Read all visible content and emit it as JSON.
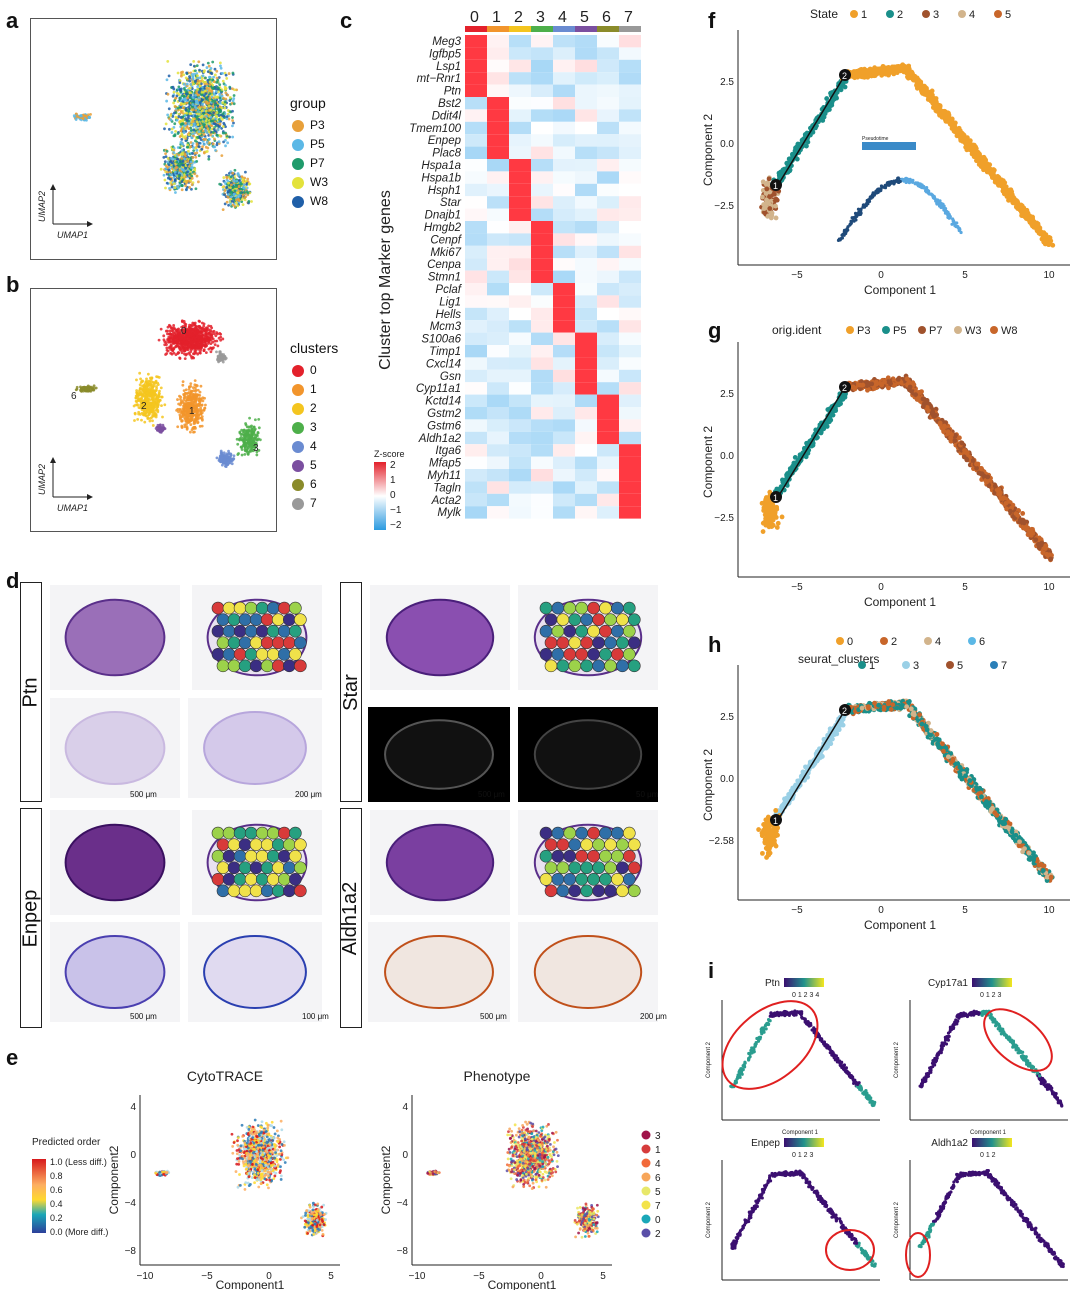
{
  "labels": {
    "a": "a",
    "b": "b",
    "c": "c",
    "d": "d",
    "e": "e",
    "f": "f",
    "g": "g",
    "h": "h",
    "i": "i"
  },
  "panel_a": {
    "legend_title": "group",
    "groups": [
      {
        "name": "P3",
        "color": "#e8a03a"
      },
      {
        "name": "P5",
        "color": "#5bb8e6"
      },
      {
        "name": "P7",
        "color": "#1f9b6b"
      },
      {
        "name": "W3",
        "color": "#e3e23b"
      },
      {
        "name": "W8",
        "color": "#1f5fa8"
      }
    ],
    "x_axis": "UMAP1",
    "y_axis": "UMAP2"
  },
  "panel_b": {
    "legend_title": "clusters",
    "clusters": [
      {
        "name": "0",
        "color": "#e3212b"
      },
      {
        "name": "1",
        "color": "#f2952c"
      },
      {
        "name": "2",
        "color": "#f4c51f"
      },
      {
        "name": "3",
        "color": "#4daf4a"
      },
      {
        "name": "4",
        "color": "#6a8bd1"
      },
      {
        "name": "5",
        "color": "#7b4fa0"
      },
      {
        "name": "6",
        "color": "#8a8b2a"
      },
      {
        "name": "7",
        "color": "#999999"
      }
    ],
    "x_axis": "UMAP1",
    "y_axis": "UMAP2"
  },
  "panel_c": {
    "ylabel": "Cluster top Marker genes",
    "columns": [
      "0",
      "1",
      "2",
      "3",
      "4",
      "5",
      "6",
      "7"
    ],
    "column_colors": [
      "#e3212b",
      "#f2952c",
      "#f4c51f",
      "#4daf4a",
      "#6a8bd1",
      "#7b4fa0",
      "#8a8b2a",
      "#999999"
    ],
    "genes": [
      "Meg3",
      "Igfbp5",
      "Lsp1",
      "mt−Rnr1",
      "Ptn",
      "Bst2",
      "Ddit4l",
      "Tmem100",
      "Enpep",
      "Plac8",
      "Hspa1a",
      "Hspa1b",
      "Hsph1",
      "Star",
      "Dnajb1",
      "Hmgb2",
      "Cenpf",
      "Mki67",
      "Cenpa",
      "Stmn1",
      "Pclaf",
      "Lig1",
      "Hells",
      "Mcm3",
      "S100a6",
      "Timp1",
      "Cxcl14",
      "Gsn",
      "Cyp11a1",
      "Kctd14",
      "Gstm2",
      "Gstm6",
      "Aldh1a2",
      "Itga6",
      "Mfap5",
      "Myh11",
      "Tagln",
      "Acta2",
      "Mylk"
    ],
    "gene_cluster": [
      0,
      0,
      0,
      0,
      0,
      1,
      1,
      1,
      1,
      1,
      2,
      2,
      2,
      2,
      2,
      3,
      3,
      3,
      3,
      3,
      4,
      4,
      4,
      4,
      5,
      5,
      5,
      5,
      5,
      6,
      6,
      6,
      6,
      7,
      7,
      7,
      7,
      7,
      7
    ],
    "zscore_title": "Z-score",
    "zscore_ticks": [
      "2",
      "1",
      "0",
      "−1",
      "−2"
    ]
  },
  "panel_d": {
    "genes": [
      "Ptn",
      "Star",
      "Enpep",
      "Aldh1a2"
    ],
    "scalebars": [
      "500 μm",
      "200 μm",
      "500 μm",
      "50 μm",
      "500 μm",
      "100 μm",
      "500 μm",
      "200 μm"
    ]
  },
  "panel_e": {
    "left_title": "CytoTRACE",
    "right_title": "Phenotype",
    "x_axis": "Component1",
    "y_axis": "Component2",
    "x_ticks": [
      "−10",
      "−5",
      "0",
      "5"
    ],
    "y_ticks": [
      "4",
      "0",
      "−4",
      "−8"
    ],
    "y_ticks_left": [
      "4",
      "0",
      "−4",
      "−8"
    ],
    "legend_title": "Predicted order",
    "legend_items": [
      "1.0 (Less diff.)",
      "0.8",
      "0.6",
      "0.4",
      "0.2",
      "0.0 (More diff.)"
    ],
    "phenotype_legend": [
      {
        "name": "3",
        "color": "#a0144a"
      },
      {
        "name": "1",
        "color": "#d63c3c"
      },
      {
        "name": "4",
        "color": "#f26a3a"
      },
      {
        "name": "6",
        "color": "#f7a65a"
      },
      {
        "name": "5",
        "color": "#e8e86a"
      },
      {
        "name": "7",
        "color": "#f3e34a"
      },
      {
        "name": "0",
        "color": "#1aa7b8"
      },
      {
        "name": "2",
        "color": "#5a4fa8"
      }
    ]
  },
  "panel_f": {
    "legend_title": "State",
    "states": [
      {
        "name": "1",
        "color": "#f0a02a"
      },
      {
        "name": "2",
        "color": "#1a8f8a"
      },
      {
        "name": "3",
        "color": "#a0522d"
      },
      {
        "name": "4",
        "color": "#d2b48c"
      },
      {
        "name": "5",
        "color": "#c8662a"
      }
    ],
    "x_axis": "Component 1",
    "y_axis": "Component 2",
    "x_ticks": [
      "−5",
      "0",
      "5",
      "10"
    ],
    "y_ticks": [
      "2.5",
      "0.0",
      "−2.5"
    ],
    "inset_label": "Pseudotime"
  },
  "panel_g": {
    "legend_title": "orig.ident",
    "groups": [
      {
        "name": "P3",
        "color": "#f0a02a"
      },
      {
        "name": "P5",
        "color": "#1a8f8a"
      },
      {
        "name": "P7",
        "color": "#a0522d"
      },
      {
        "name": "W3",
        "color": "#d2b48c"
      },
      {
        "name": "W8",
        "color": "#c8662a"
      }
    ],
    "x_axis": "Component 1",
    "y_axis": "Component 2",
    "x_ticks": [
      "−5",
      "0",
      "5",
      "10"
    ],
    "y_ticks": [
      "2.5",
      "0.0",
      "−2.5"
    ]
  },
  "panel_h": {
    "legend_title": "seurat_clusters",
    "clusters_row1": [
      {
        "name": "0",
        "color": "#f0a02a"
      },
      {
        "name": "2",
        "color": "#c8662a"
      },
      {
        "name": "4",
        "color": "#d2b48c"
      },
      {
        "name": "6",
        "color": "#5bb8e6"
      }
    ],
    "clusters_row2": [
      {
        "name": "1",
        "color": "#1a8f8a"
      },
      {
        "name": "3",
        "color": "#9ad0e6"
      },
      {
        "name": "5",
        "color": "#a0522d"
      },
      {
        "name": "7",
        "color": "#2a7fb8"
      }
    ],
    "x_axis": "Component 1",
    "y_axis": "Component 2",
    "x_ticks": [
      "−5",
      "0",
      "5",
      "10"
    ],
    "y_ticks": [
      "2.5",
      "0.0",
      "−2.58"
    ]
  },
  "panel_i": {
    "subplots": [
      {
        "gene": "Ptn",
        "ticks": "0 1 2 3 4"
      },
      {
        "gene": "Cyp17a1",
        "ticks": "0 1 2 3"
      },
      {
        "gene": "Enpep",
        "ticks": "0 1 2 3"
      },
      {
        "gene": "Aldh1a2",
        "ticks": "0 1 2"
      }
    ],
    "x_axis": "Component 1",
    "y_axis": "Component 2"
  }
}
